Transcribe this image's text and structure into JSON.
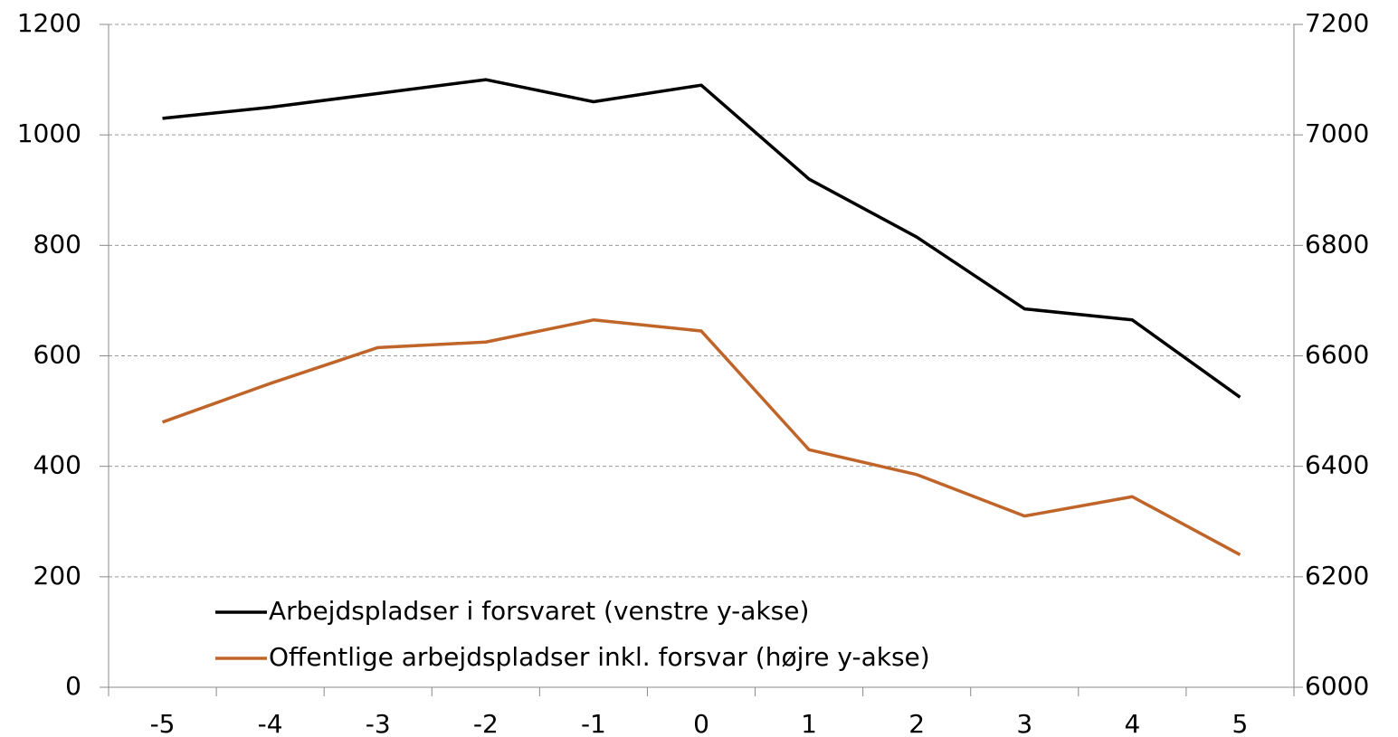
{
  "chart_data": {
    "type": "line",
    "categories": [
      "-5",
      "-4",
      "-3",
      "-2",
      "-1",
      "0",
      "1",
      "2",
      "3",
      "4",
      "5"
    ],
    "series": [
      {
        "name": "Arbejdspladser i forsvaret (venstre y-akse)",
        "color": "#000000",
        "values": [
          1030,
          1050,
          1075,
          1100,
          1060,
          1090,
          920,
          815,
          685,
          665,
          525
        ]
      },
      {
        "name": "Offentlige arbejdspladser inkl. forsvar (højre y-akse)",
        "color": "#c0652a",
        "axis": "y2",
        "values": [
          6480,
          6550,
          6615,
          6625,
          6665,
          6645,
          6430,
          6385,
          6310,
          6345,
          6240
        ]
      }
    ],
    "ylim": [
      0,
      1200
    ],
    "yticks": [
      0,
      200,
      400,
      600,
      800,
      1000,
      1200
    ],
    "y2lim": [
      6000,
      7200
    ],
    "y2ticks": [
      6000,
      6200,
      6400,
      6600,
      6800,
      7000,
      7200
    ],
    "grid": true,
    "legend": "lower left"
  }
}
